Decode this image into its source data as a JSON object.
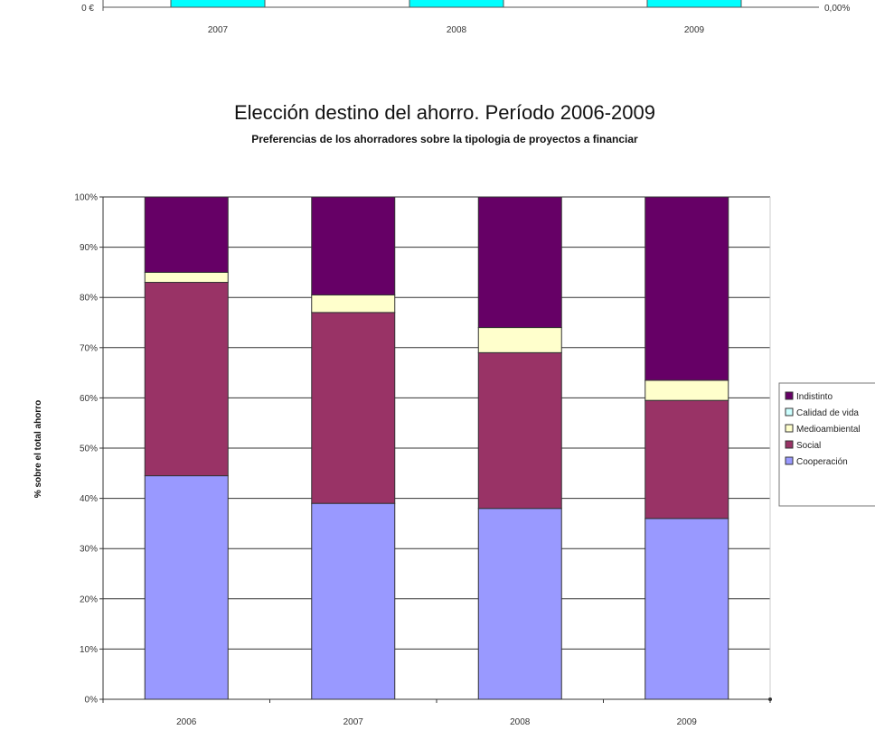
{
  "top_chart": {
    "y_left_label": "0 €",
    "y_right_label": "0,00%",
    "categories": [
      "2007",
      "2008",
      "2009"
    ],
    "bar_color": "#00FFFF",
    "bar_values": [
      1,
      1,
      1
    ]
  },
  "chart_data": {
    "type": "bar",
    "stacked": true,
    "percent": true,
    "title": "Elección destino del ahorro. Período 2006-2009",
    "subtitle": "Preferencias de los ahorradores sobre la tipologia de proyectos a financiar",
    "xlabel": "",
    "ylabel": "% sobre el total ahorro",
    "ylim": [
      0,
      100
    ],
    "yticks": [
      "0%",
      "10%",
      "20%",
      "30%",
      "40%",
      "50%",
      "60%",
      "70%",
      "80%",
      "90%",
      "100%"
    ],
    "categories": [
      "2006",
      "2007",
      "2008",
      "2009"
    ],
    "series": [
      {
        "name": "Cooperación",
        "color": "#9999FF",
        "values": [
          44.5,
          39,
          38,
          36
        ]
      },
      {
        "name": "Social",
        "color": "#993366",
        "values": [
          38.5,
          38,
          31,
          23.5
        ]
      },
      {
        "name": "Medioambiental",
        "color": "#FFFFCC",
        "values": [
          2,
          3.5,
          5,
          4
        ]
      },
      {
        "name": "Calidad de vida",
        "color": "#CCFFFF",
        "values": [
          0,
          0,
          0,
          0
        ]
      },
      {
        "name": "Indistinto",
        "color": "#660066",
        "values": [
          15,
          19.5,
          26,
          36.5
        ]
      }
    ],
    "grid": true,
    "legend_position": "right"
  }
}
